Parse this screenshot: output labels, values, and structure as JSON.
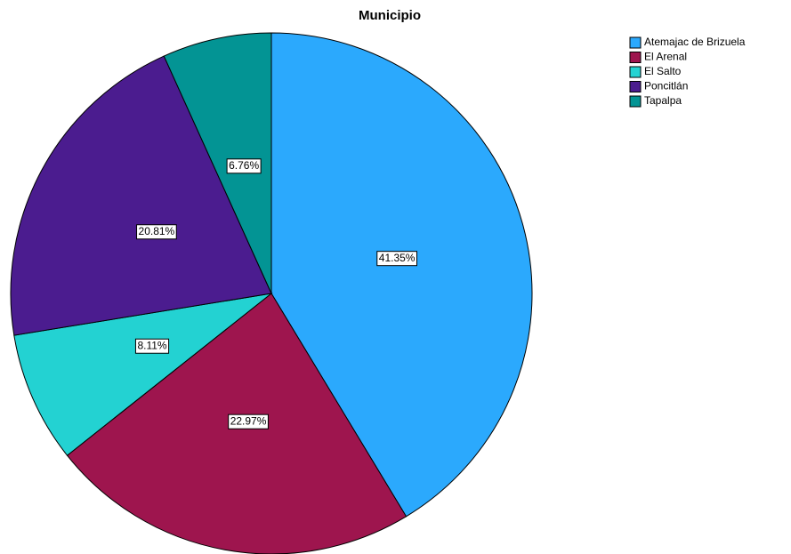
{
  "chart_data": {
    "type": "pie",
    "title": "Municipio",
    "categories": [
      "Atemajac de Brizuela",
      "El Arenal",
      "El Salto",
      "Poncitlán",
      "Tapalpa"
    ],
    "values": [
      41.35,
      22.97,
      8.11,
      20.81,
      6.76
    ],
    "value_labels": [
      "41.35%",
      "22.97%",
      "8.11%",
      "20.81%",
      "6.76%"
    ],
    "colors": [
      "#2ba9fd",
      "#9e154e",
      "#23d2d2",
      "#4b1c8f",
      "#039494"
    ],
    "legend": "top-right"
  }
}
